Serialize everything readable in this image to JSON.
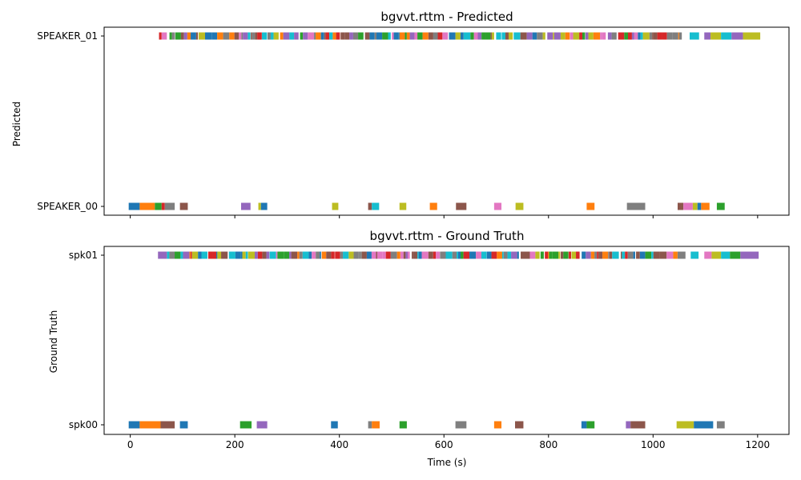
{
  "chart_data": [
    {
      "type": "timeline",
      "title": "bgvvt.rttm - Predicted",
      "ylabel": "Predicted",
      "xlabel": "",
      "xlim": [
        -50,
        1260
      ],
      "xticks": [
        0,
        200,
        400,
        600,
        800,
        1000,
        1200
      ],
      "show_xtick_labels": false,
      "categories": [
        "SPEAKER_00",
        "SPEAKER_01"
      ],
      "segments": [
        {
          "speaker": "SPEAKER_00",
          "start": -3,
          "end": 18,
          "color": "#1f77b4"
        },
        {
          "speaker": "SPEAKER_00",
          "start": 18,
          "end": 47,
          "color": "#ff7f0e"
        },
        {
          "speaker": "SPEAKER_00",
          "start": 47,
          "end": 60,
          "color": "#2ca02c"
        },
        {
          "speaker": "SPEAKER_00",
          "start": 60,
          "end": 66,
          "color": "#d62728"
        },
        {
          "speaker": "SPEAKER_00",
          "start": 66,
          "end": 85,
          "color": "#7f7f7f"
        },
        {
          "speaker": "SPEAKER_00",
          "start": 95,
          "end": 110,
          "color": "#8c564b"
        },
        {
          "speaker": "SPEAKER_00",
          "start": 212,
          "end": 230,
          "color": "#9467bd"
        },
        {
          "speaker": "SPEAKER_00",
          "start": 245,
          "end": 250,
          "color": "#bcbd22"
        },
        {
          "speaker": "SPEAKER_00",
          "start": 250,
          "end": 262,
          "color": "#1f77b4"
        },
        {
          "speaker": "SPEAKER_00",
          "start": 386,
          "end": 398,
          "color": "#bcbd22"
        },
        {
          "speaker": "SPEAKER_00",
          "start": 455,
          "end": 462,
          "color": "#8c564b"
        },
        {
          "speaker": "SPEAKER_00",
          "start": 462,
          "end": 476,
          "color": "#17becf"
        },
        {
          "speaker": "SPEAKER_00",
          "start": 515,
          "end": 528,
          "color": "#bcbd22"
        },
        {
          "speaker": "SPEAKER_00",
          "start": 573,
          "end": 587,
          "color": "#ff7f0e"
        },
        {
          "speaker": "SPEAKER_00",
          "start": 623,
          "end": 643,
          "color": "#8c564b"
        },
        {
          "speaker": "SPEAKER_00",
          "start": 696,
          "end": 710,
          "color": "#e377c2"
        },
        {
          "speaker": "SPEAKER_00",
          "start": 737,
          "end": 752,
          "color": "#bcbd22"
        },
        {
          "speaker": "SPEAKER_00",
          "start": 873,
          "end": 888,
          "color": "#ff7f0e"
        },
        {
          "speaker": "SPEAKER_00",
          "start": 950,
          "end": 985,
          "color": "#7f7f7f"
        },
        {
          "speaker": "SPEAKER_00",
          "start": 1047,
          "end": 1058,
          "color": "#8c564b"
        },
        {
          "speaker": "SPEAKER_00",
          "start": 1058,
          "end": 1076,
          "color": "#e377c2"
        },
        {
          "speaker": "SPEAKER_00",
          "start": 1076,
          "end": 1085,
          "color": "#bcbd22"
        },
        {
          "speaker": "SPEAKER_00",
          "start": 1085,
          "end": 1092,
          "color": "#1f77b4"
        },
        {
          "speaker": "SPEAKER_00",
          "start": 1092,
          "end": 1108,
          "color": "#ff7f0e"
        },
        {
          "speaker": "SPEAKER_00",
          "start": 1122,
          "end": 1137,
          "color": "#2ca02c"
        },
        {
          "speaker": "SPEAKER_01",
          "start": 55,
          "end": 60,
          "color": "#d62728"
        },
        {
          "speaker": "SPEAKER_01",
          "start": 60,
          "end": 70,
          "color": "#e377c2"
        },
        {
          "speaker": "SPEAKER_01",
          "start": 1050,
          "end": 1055,
          "color": "#7f7f7f"
        },
        {
          "speaker": "SPEAKER_01",
          "start": 1070,
          "end": 1088,
          "color": "#17becf"
        },
        {
          "speaker": "SPEAKER_01",
          "start": 1098,
          "end": 1110,
          "color": "#9467bd"
        },
        {
          "speaker": "SPEAKER_01",
          "start": 1110,
          "end": 1130,
          "color": "#bcbd22"
        },
        {
          "speaker": "SPEAKER_01",
          "start": 1130,
          "end": 1150,
          "color": "#17becf"
        },
        {
          "speaker": "SPEAKER_01",
          "start": 1150,
          "end": 1172,
          "color": "#9467bd"
        },
        {
          "speaker": "SPEAKER_01",
          "start": 1172,
          "end": 1205,
          "color": "#bcbd22"
        }
      ],
      "dense_run": {
        "speaker": "SPEAKER_01",
        "start": 75,
        "end": 1050,
        "seed": 11
      }
    },
    {
      "type": "timeline",
      "title": "bgvvt.rttm - Ground Truth",
      "ylabel": "Ground Truth",
      "xlabel": "Time (s)",
      "xlim": [
        -50,
        1260
      ],
      "xticks": [
        0,
        200,
        400,
        600,
        800,
        1000,
        1200
      ],
      "show_xtick_labels": true,
      "categories": [
        "spk00",
        "spk01"
      ],
      "segments": [
        {
          "speaker": "spk00",
          "start": -3,
          "end": 18,
          "color": "#1f77b4"
        },
        {
          "speaker": "spk00",
          "start": 18,
          "end": 58,
          "color": "#ff7f0e"
        },
        {
          "speaker": "spk00",
          "start": 58,
          "end": 85,
          "color": "#8c564b"
        },
        {
          "speaker": "spk00",
          "start": 95,
          "end": 110,
          "color": "#1f77b4"
        },
        {
          "speaker": "spk00",
          "start": 210,
          "end": 232,
          "color": "#2ca02c"
        },
        {
          "speaker": "spk00",
          "start": 242,
          "end": 262,
          "color": "#9467bd"
        },
        {
          "speaker": "spk00",
          "start": 384,
          "end": 397,
          "color": "#1f77b4"
        },
        {
          "speaker": "spk00",
          "start": 455,
          "end": 462,
          "color": "#7f7f7f"
        },
        {
          "speaker": "spk00",
          "start": 462,
          "end": 477,
          "color": "#ff7f0e"
        },
        {
          "speaker": "spk00",
          "start": 515,
          "end": 529,
          "color": "#2ca02c"
        },
        {
          "speaker": "spk00",
          "start": 622,
          "end": 643,
          "color": "#7f7f7f"
        },
        {
          "speaker": "spk00",
          "start": 696,
          "end": 710,
          "color": "#ff7f0e"
        },
        {
          "speaker": "spk00",
          "start": 736,
          "end": 752,
          "color": "#8c564b"
        },
        {
          "speaker": "spk00",
          "start": 863,
          "end": 873,
          "color": "#1f77b4"
        },
        {
          "speaker": "spk00",
          "start": 873,
          "end": 888,
          "color": "#2ca02c"
        },
        {
          "speaker": "spk00",
          "start": 948,
          "end": 957,
          "color": "#9467bd"
        },
        {
          "speaker": "spk00",
          "start": 957,
          "end": 985,
          "color": "#8c564b"
        },
        {
          "speaker": "spk00",
          "start": 1045,
          "end": 1078,
          "color": "#bcbd22"
        },
        {
          "speaker": "spk00",
          "start": 1078,
          "end": 1115,
          "color": "#1f77b4"
        },
        {
          "speaker": "spk00",
          "start": 1122,
          "end": 1137,
          "color": "#7f7f7f"
        },
        {
          "speaker": "spk01",
          "start": 53,
          "end": 70,
          "color": "#9467bd"
        },
        {
          "speaker": "spk01",
          "start": 1047,
          "end": 1062,
          "color": "#7f7f7f"
        },
        {
          "speaker": "spk01",
          "start": 1072,
          "end": 1087,
          "color": "#17becf"
        },
        {
          "speaker": "spk01",
          "start": 1098,
          "end": 1112,
          "color": "#e377c2"
        },
        {
          "speaker": "spk01",
          "start": 1112,
          "end": 1130,
          "color": "#bcbd22"
        },
        {
          "speaker": "spk01",
          "start": 1130,
          "end": 1147,
          "color": "#17becf"
        },
        {
          "speaker": "spk01",
          "start": 1147,
          "end": 1167,
          "color": "#2ca02c"
        },
        {
          "speaker": "spk01",
          "start": 1167,
          "end": 1202,
          "color": "#9467bd"
        }
      ],
      "dense_run": {
        "speaker": "spk01",
        "start": 70,
        "end": 1047,
        "seed": 29
      }
    }
  ]
}
